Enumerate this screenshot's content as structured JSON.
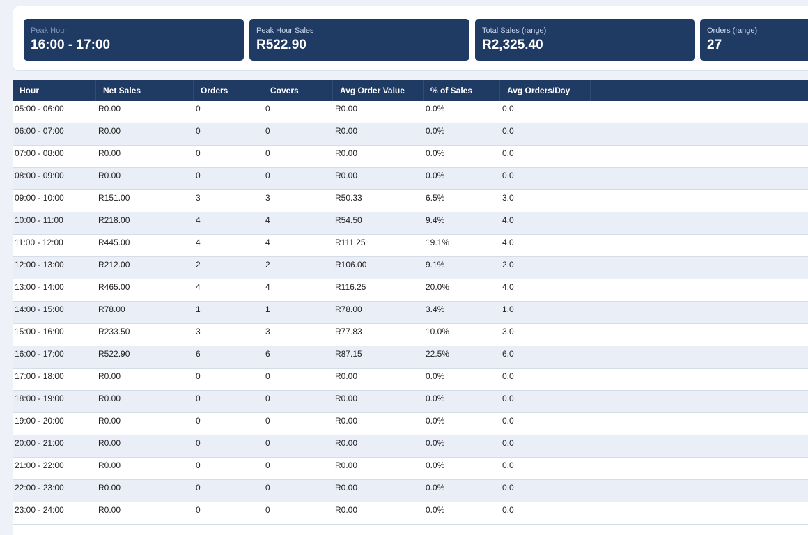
{
  "kpis": [
    {
      "label": "Peak Hour",
      "value": "16:00 - 17:00"
    },
    {
      "label": "Peak Hour Sales",
      "value": "R522.90"
    },
    {
      "label": "Total Sales (range)",
      "value": "R2,325.40"
    },
    {
      "label": "Orders (range)",
      "value": "27"
    }
  ],
  "table": {
    "columns": [
      "Hour",
      "Net Sales",
      "Orders",
      "Covers",
      "Avg Order Value",
      "% of Sales",
      "Avg Orders/Day"
    ],
    "rows": [
      [
        "05:00 - 06:00",
        "R0.00",
        "0",
        "0",
        "R0.00",
        "0.0%",
        "0.0"
      ],
      [
        "06:00 - 07:00",
        "R0.00",
        "0",
        "0",
        "R0.00",
        "0.0%",
        "0.0"
      ],
      [
        "07:00 - 08:00",
        "R0.00",
        "0",
        "0",
        "R0.00",
        "0.0%",
        "0.0"
      ],
      [
        "08:00 - 09:00",
        "R0.00",
        "0",
        "0",
        "R0.00",
        "0.0%",
        "0.0"
      ],
      [
        "09:00 - 10:00",
        "R151.00",
        "3",
        "3",
        "R50.33",
        "6.5%",
        "3.0"
      ],
      [
        "10:00 - 11:00",
        "R218.00",
        "4",
        "4",
        "R54.50",
        "9.4%",
        "4.0"
      ],
      [
        "11:00 - 12:00",
        "R445.00",
        "4",
        "4",
        "R111.25",
        "19.1%",
        "4.0"
      ],
      [
        "12:00 - 13:00",
        "R212.00",
        "2",
        "2",
        "R106.00",
        "9.1%",
        "2.0"
      ],
      [
        "13:00 - 14:00",
        "R465.00",
        "4",
        "4",
        "R116.25",
        "20.0%",
        "4.0"
      ],
      [
        "14:00 - 15:00",
        "R78.00",
        "1",
        "1",
        "R78.00",
        "3.4%",
        "1.0"
      ],
      [
        "15:00 - 16:00",
        "R233.50",
        "3",
        "3",
        "R77.83",
        "10.0%",
        "3.0"
      ],
      [
        "16:00 - 17:00",
        "R522.90",
        "6",
        "6",
        "R87.15",
        "22.5%",
        "6.0"
      ],
      [
        "17:00 - 18:00",
        "R0.00",
        "0",
        "0",
        "R0.00",
        "0.0%",
        "0.0"
      ],
      [
        "18:00 - 19:00",
        "R0.00",
        "0",
        "0",
        "R0.00",
        "0.0%",
        "0.0"
      ],
      [
        "19:00 - 20:00",
        "R0.00",
        "0",
        "0",
        "R0.00",
        "0.0%",
        "0.0"
      ],
      [
        "20:00 - 21:00",
        "R0.00",
        "0",
        "0",
        "R0.00",
        "0.0%",
        "0.0"
      ],
      [
        "21:00 - 22:00",
        "R0.00",
        "0",
        "0",
        "R0.00",
        "0.0%",
        "0.0"
      ],
      [
        "22:00 - 23:00",
        "R0.00",
        "0",
        "0",
        "R0.00",
        "0.0%",
        "0.0"
      ],
      [
        "23:00 - 24:00",
        "R0.00",
        "0",
        "0",
        "R0.00",
        "0.0%",
        "0.0"
      ]
    ]
  }
}
